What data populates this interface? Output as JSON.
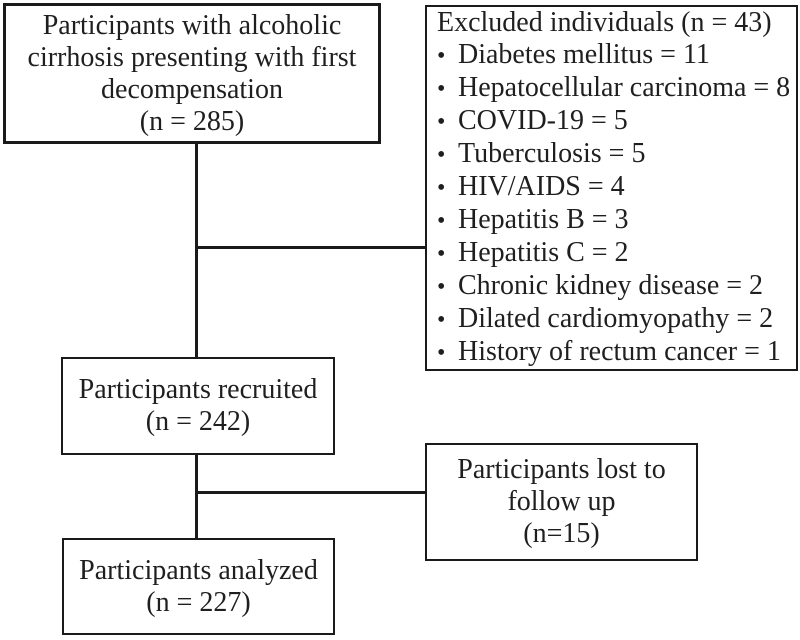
{
  "figure": {
    "type": "participant-flowchart",
    "colors": {
      "background": "#ffffff",
      "border": "#1a1a1a",
      "text": "#1f1f1f"
    },
    "enrollment": {
      "lines": [
        "Participants with alcoholic",
        "cirrhosis presenting with first",
        "decompensation",
        "(n = 285)"
      ]
    },
    "excluded": {
      "title": "Excluded individuals (n = 43)",
      "bullet_glyph": "•",
      "items": [
        "Diabetes mellitus = 11",
        "Hepatocellular carcinoma = 8",
        "COVID-19 = 5",
        "Tuberculosis = 5",
        "HIV/AIDS = 4",
        "Hepatitis B = 3",
        "Hepatitis C = 2",
        "Chronic kidney disease = 2",
        "Dilated cardiomyopathy = 2",
        "History of rectum cancer = 1"
      ]
    },
    "recruited": {
      "lines": [
        "Participants recruited",
        "(n = 242)"
      ]
    },
    "lost_to_followup": {
      "lines": [
        "Participants lost to",
        "follow up",
        "(n=15)"
      ]
    },
    "analyzed": {
      "lines": [
        "Participants analyzed",
        "(n = 227)"
      ]
    }
  }
}
